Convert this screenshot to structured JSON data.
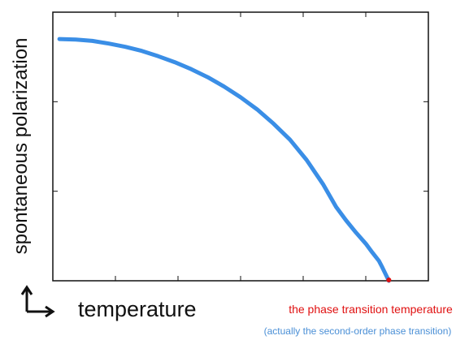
{
  "chart_data": {
    "type": "line",
    "title": "",
    "xlabel": "temperature",
    "ylabel": "spontaneous polarization",
    "x": [
      0,
      0.05,
      0.1,
      0.15,
      0.2,
      0.25,
      0.3,
      0.35,
      0.4,
      0.45,
      0.5,
      0.55,
      0.6,
      0.65,
      0.7,
      0.75,
      0.8,
      0.84,
      0.87,
      0.9,
      0.93,
      0.95,
      0.97,
      0.98,
      0.99,
      1.0
    ],
    "series": [
      {
        "values": [
          0.9,
          0.898,
          0.893,
          0.883,
          0.871,
          0.856,
          0.836,
          0.814,
          0.788,
          0.758,
          0.723,
          0.683,
          0.638,
          0.585,
          0.525,
          0.45,
          0.36,
          0.275,
          0.225,
          0.18,
          0.138,
          0.105,
          0.074,
          0.05,
          0.025,
          0.0
        ],
        "color": "#3a8ee6"
      }
    ],
    "transition_point": {
      "x": 1.0,
      "y": 0.0,
      "color": "#e01010"
    },
    "xlim": [
      -0.02,
      1.12
    ],
    "ylim": [
      0,
      1.0
    ],
    "xticks_count": 6,
    "yticks_count": 3,
    "grid": false,
    "legend": "none",
    "annotations": {
      "main": "the phase transition temperature",
      "main_color": "#e01010",
      "sub": "(actually the second-order phase transition)",
      "sub_color": "#4a8fd6"
    }
  }
}
